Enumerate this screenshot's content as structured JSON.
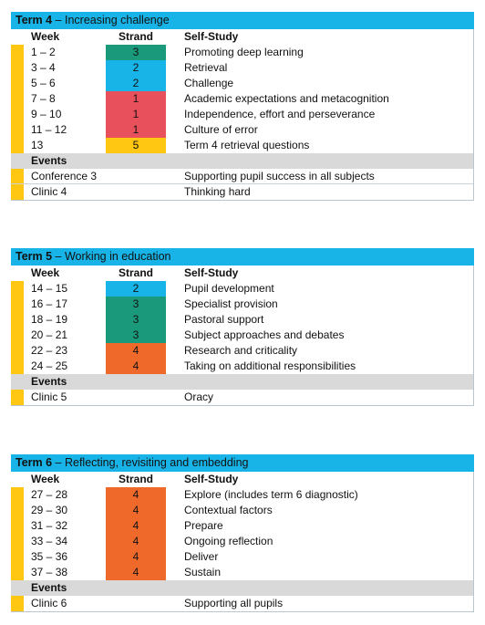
{
  "terms": [
    {
      "number": "Term 4",
      "title": "Increasing challenge",
      "headers": {
        "week": "Week",
        "strand": "Strand",
        "study": "Self-Study"
      },
      "rows": [
        {
          "week": "1 – 2",
          "strand": "3",
          "study": "Promoting deep learning",
          "color": "#1a9a7a"
        },
        {
          "week": "3 – 4",
          "strand": "2",
          "study": "Retrieval",
          "color": "#18b4e8"
        },
        {
          "week": "5 – 6",
          "strand": "2",
          "study": "Challenge",
          "color": "#18b4e8"
        },
        {
          "week": "7 – 8",
          "strand": "1",
          "study": "Academic expectations and metacognition",
          "color": "#e8505b"
        },
        {
          "week": "9 – 10",
          "strand": "1",
          "study": "Independence, effort and perseverance",
          "color": "#e8505b"
        },
        {
          "week": "11 – 12",
          "strand": "1",
          "study": "Culture of error",
          "color": "#e8505b"
        },
        {
          "week": "13",
          "strand": "5",
          "study": "Term 4 retrieval questions",
          "color": "#ffc712"
        }
      ],
      "events_label": "Events",
      "events": [
        {
          "name": "Conference 3",
          "study": "Supporting pupil success in all subjects"
        },
        {
          "name": "Clinic 4",
          "study": "Thinking hard"
        }
      ]
    },
    {
      "number": "Term 5",
      "title": "Working in education",
      "headers": {
        "week": "Week",
        "strand": "Strand",
        "study": "Self-Study"
      },
      "rows": [
        {
          "week": "14 – 15",
          "strand": "2",
          "study": "Pupil development",
          "color": "#18b4e8"
        },
        {
          "week": "16 – 17",
          "strand": "3",
          "study": "Specialist provision",
          "color": "#1a9a7a"
        },
        {
          "week": "18 – 19",
          "strand": "3",
          "study": "Pastoral support",
          "color": "#1a9a7a"
        },
        {
          "week": "20 – 21",
          "strand": "3",
          "study": "Subject approaches and debates",
          "color": "#1a9a7a"
        },
        {
          "week": "22 – 23",
          "strand": "4",
          "study": "Research and criticality",
          "color": "#ef6a2a"
        },
        {
          "week": "24 – 25",
          "strand": "4",
          "study": "Taking on additional responsibilities",
          "color": "#ef6a2a"
        }
      ],
      "events_label": "Events",
      "events": [
        {
          "name": "Clinic 5",
          "study": "Oracy"
        }
      ]
    },
    {
      "number": "Term 6",
      "title": "Reflecting, revisiting and embedding",
      "headers": {
        "week": "Week",
        "strand": "Strand",
        "study": "Self-Study"
      },
      "rows": [
        {
          "week": "27 – 28",
          "strand": "4",
          "study": "Explore (includes term 6 diagnostic)",
          "color": "#ef6a2a"
        },
        {
          "week": "29 – 30",
          "strand": "4",
          "study": "Contextual factors",
          "color": "#ef6a2a"
        },
        {
          "week": "31 – 32",
          "strand": "4",
          "study": "Prepare",
          "color": "#ef6a2a"
        },
        {
          "week": "33 – 34",
          "strand": "4",
          "study": "Ongoing reflection",
          "color": "#ef6a2a"
        },
        {
          "week": "35 – 36",
          "strand": "4",
          "study": "Deliver",
          "color": "#ef6a2a"
        },
        {
          "week": "37 – 38",
          "strand": "4",
          "study": "Sustain",
          "color": "#ef6a2a"
        }
      ],
      "events_label": "Events",
      "events": [
        {
          "name": "Clinic 6",
          "study": "Supporting all pupils"
        }
      ]
    }
  ]
}
